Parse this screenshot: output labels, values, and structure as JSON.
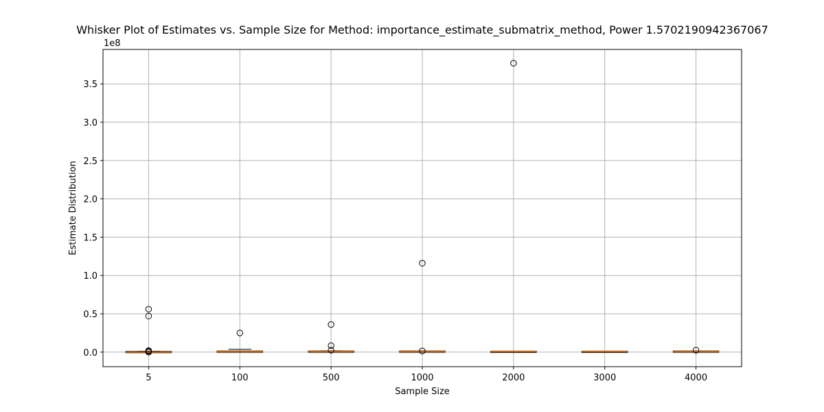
{
  "chart_data": {
    "type": "box",
    "title": "Whisker Plot of Estimates vs. Sample Size for Method: importance_estimate_submatrix_method, Power 1.5702190942367067",
    "xlabel": "Sample Size",
    "ylabel": "Estimate Distribution",
    "y_offset_label": "1e8",
    "y_scale": 100000000.0,
    "ylim": [
      -0.19,
      3.95
    ],
    "yticks": [
      0.0,
      0.5,
      1.0,
      1.5,
      2.0,
      2.5,
      3.0,
      3.5
    ],
    "ytick_labels": [
      "0.0",
      "0.5",
      "1.0",
      "1.5",
      "2.0",
      "2.5",
      "3.0",
      "3.5"
    ],
    "grid": true,
    "categories": [
      "5",
      "100",
      "500",
      "1000",
      "2000",
      "3000",
      "4000"
    ],
    "boxes": [
      {
        "category": "5",
        "whisker_low": 0.0,
        "q1": 0.0,
        "median": 0.0,
        "q3": 0.005,
        "whisker_high": 0.01,
        "outliers": [
          0.56,
          0.47,
          0.02,
          0.01,
          0.0
        ]
      },
      {
        "category": "100",
        "whisker_low": 0.0,
        "q1": 0.0,
        "median": 0.005,
        "q3": 0.01,
        "whisker_high": 0.02,
        "outliers": [
          0.25
        ]
      },
      {
        "category": "500",
        "whisker_low": 0.0,
        "q1": 0.0,
        "median": 0.005,
        "q3": 0.01,
        "whisker_high": 0.015,
        "outliers": [
          0.36,
          0.085,
          0.025
        ]
      },
      {
        "category": "1000",
        "whisker_low": 0.0,
        "q1": 0.0,
        "median": 0.005,
        "q3": 0.01,
        "whisker_high": 0.012,
        "outliers": [
          1.16,
          0.015
        ]
      },
      {
        "category": "2000",
        "whisker_low": 0.0,
        "q1": 0.0,
        "median": 0.005,
        "q3": 0.008,
        "whisker_high": 0.01,
        "outliers": [
          3.77
        ]
      },
      {
        "category": "3000",
        "whisker_low": 0.0,
        "q1": 0.0,
        "median": 0.005,
        "q3": 0.008,
        "whisker_high": 0.01,
        "outliers": []
      },
      {
        "category": "4000",
        "whisker_low": 0.0,
        "q1": 0.0,
        "median": 0.005,
        "q3": 0.01,
        "whisker_high": 0.012,
        "outliers": [
          0.025
        ]
      }
    ]
  },
  "colors": {
    "box_edge": "#000000",
    "median": "#ff7f0e",
    "grid": "#b0b0b0",
    "outlier_edge": "#000000"
  }
}
